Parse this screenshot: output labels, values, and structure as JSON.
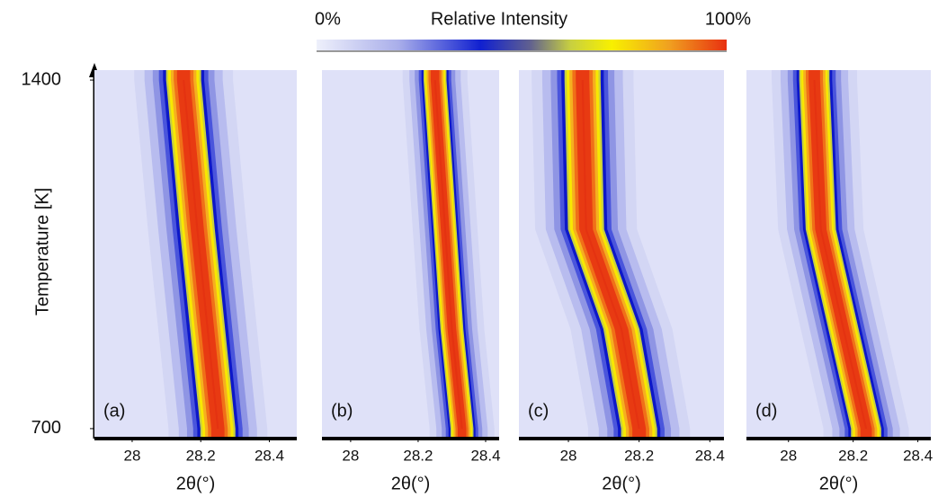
{
  "colorbar": {
    "min_label": "0%",
    "title": "Relative Intensity",
    "max_label": "100%"
  },
  "y_axis": {
    "label": "Temperature [K]",
    "ylim": [
      680,
      1420
    ],
    "yticks": [
      700,
      1400
    ]
  },
  "chart_data": [
    {
      "type": "line",
      "label": "(a)",
      "x_label": "2θ(°)",
      "xlim": [
        27.89,
        28.48
      ],
      "xticks": [
        28,
        28.2,
        28.4
      ],
      "y": [
        700,
        900,
        1100,
        1400
      ],
      "values": [
        28.25,
        28.22,
        28.19,
        28.15
      ],
      "widths": [
        0.12,
        0.12,
        0.12,
        0.12
      ]
    },
    {
      "type": "line",
      "label": "(b)",
      "x_label": "2θ(°)",
      "xlim": [
        27.915,
        28.44
      ],
      "xticks": [
        28,
        28.2,
        28.4
      ],
      "y": [
        700,
        900,
        1100,
        1400
      ],
      "values": [
        28.33,
        28.3,
        28.28,
        28.25
      ],
      "widths": [
        0.08,
        0.08,
        0.08,
        0.08
      ]
    },
    {
      "type": "line",
      "label": "(c)",
      "x_label": "2θ(°)",
      "xlim": [
        27.86,
        28.44
      ],
      "xticks": [
        28,
        28.2,
        28.4
      ],
      "y": [
        700,
        900,
        1100,
        1400
      ],
      "values": [
        28.2,
        28.15,
        28.05,
        28.04
      ],
      "widths": [
        0.12,
        0.12,
        0.12,
        0.12
      ]
    },
    {
      "type": "line",
      "label": "(d)",
      "x_label": "2θ(°)",
      "xlim": [
        27.87,
        28.44
      ],
      "xticks": [
        28,
        28.2,
        28.4
      ],
      "y": [
        700,
        900,
        1100,
        1400
      ],
      "values": [
        28.24,
        28.17,
        28.1,
        28.08
      ],
      "widths": [
        0.11,
        0.11,
        0.11,
        0.11
      ]
    }
  ]
}
